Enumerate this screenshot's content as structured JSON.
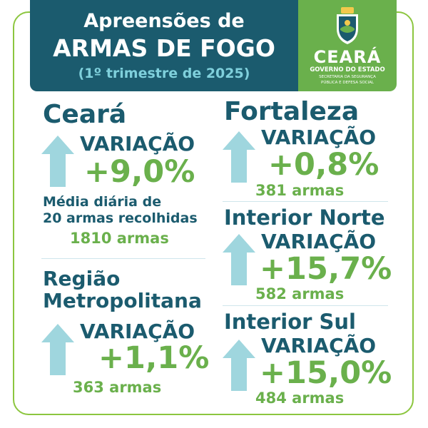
{
  "header": {
    "line1": "Apreensões de",
    "line2": "ARMAS DE FOGO",
    "line3": "(1º trimestre de 2025)"
  },
  "logo": {
    "name": "CEARÁ",
    "gov": "GOVERNO DO ESTADO",
    "secretaria1": "SECRETARIA DA SEGURANÇA",
    "secretaria2": "PÚBLICA E DEFESA SOCIAL"
  },
  "colors": {
    "navy": "#1b5b6e",
    "green": "#6ab04c",
    "arrow": "#9fd6de"
  },
  "sections": {
    "ceara": {
      "title": "Ceará",
      "label": "VARIAÇÃO",
      "value": "+9,0%",
      "note1": "Média diária de",
      "note2": "20 armas recolhidas",
      "total": "1810 armas"
    },
    "metro": {
      "title1": "Região",
      "title2": "Metropolitana",
      "label": "VARIAÇÃO",
      "value": "+1,1%",
      "total": "363 armas"
    },
    "fortaleza": {
      "title": "Fortaleza",
      "label": "VARIAÇÃO",
      "value": "+0,8%",
      "total": "381 armas"
    },
    "norte": {
      "title": "Interior Norte",
      "label": "VARIAÇÃO",
      "value": "+15,7%",
      "total": "582 armas"
    },
    "sul": {
      "title": "Interior Sul",
      "label": "VARIAÇÃO",
      "value": "+15,0%",
      "total": "484 armas"
    }
  }
}
